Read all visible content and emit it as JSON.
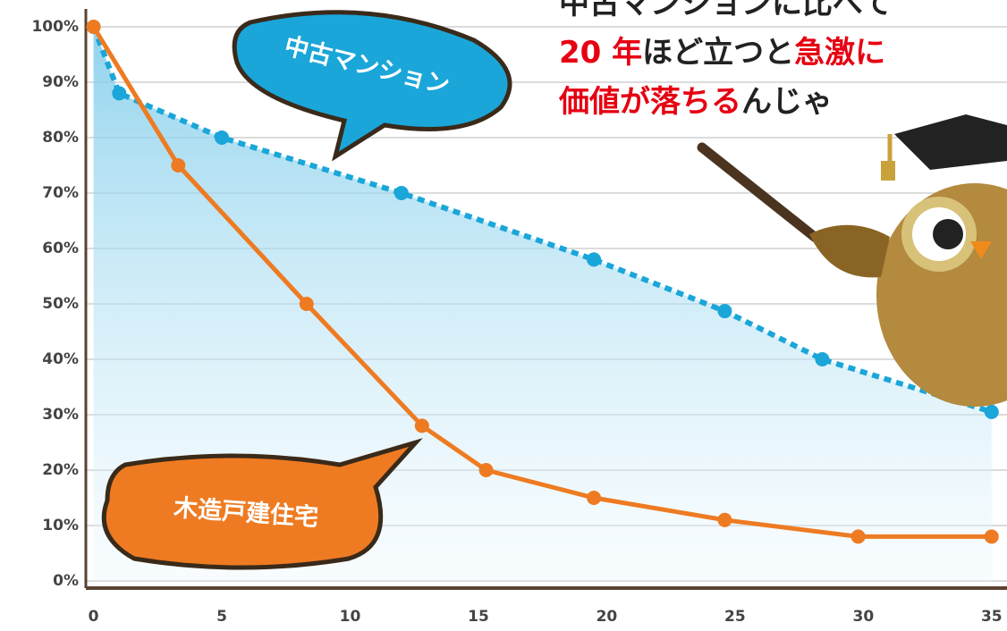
{
  "chart_data": {
    "type": "line",
    "annotation_lines": [
      [
        {
          "text": "中古マンションに比べて",
          "color": "#222222"
        }
      ],
      [
        {
          "text": "20 年",
          "color": "#e60012"
        },
        {
          "text": "ほど立つと",
          "color": "#222222"
        },
        {
          "text": "急激に",
          "color": "#e60012"
        }
      ],
      [
        {
          "text": "価値が落ちる",
          "color": "#e60012"
        },
        {
          "text": "んじゃ",
          "color": "#222222"
        }
      ]
    ],
    "series": [
      {
        "name": "中古マンション",
        "color": "#1aa6d9",
        "x": [
          0,
          1,
          5,
          12,
          19.5,
          24.6,
          28.4,
          35
        ],
        "values": [
          100,
          88,
          80,
          70,
          58,
          48.7,
          40,
          30.5
        ]
      },
      {
        "name": "木造戸建住宅",
        "color": "#ee7b22",
        "x": [
          0,
          3.3,
          8.3,
          12.8,
          15.3,
          19.5,
          24.6,
          29.8,
          35
        ],
        "values": [
          100,
          75,
          50,
          28,
          20,
          15,
          11,
          8,
          8
        ]
      }
    ],
    "xlim": [
      -0.3,
      35.6
    ],
    "xticks": [
      0,
      5,
      10,
      15,
      20,
      25,
      30,
      35
    ],
    "ylim": [
      0,
      100
    ],
    "yticks": [
      {
        "value": 0,
        "label": "0%"
      },
      {
        "value": 10,
        "label": "10%"
      },
      {
        "value": 20,
        "label": "20%"
      },
      {
        "value": 30,
        "label": "30%"
      },
      {
        "value": 40,
        "label": "40%"
      },
      {
        "value": 50,
        "label": "50%"
      },
      {
        "value": 60,
        "label": "60%"
      },
      {
        "value": 70,
        "label": "70%"
      },
      {
        "value": 80,
        "label": "80%"
      },
      {
        "value": 90,
        "label": "90%"
      },
      {
        "value": 100,
        "label": "100%"
      }
    ],
    "grid": true
  }
}
